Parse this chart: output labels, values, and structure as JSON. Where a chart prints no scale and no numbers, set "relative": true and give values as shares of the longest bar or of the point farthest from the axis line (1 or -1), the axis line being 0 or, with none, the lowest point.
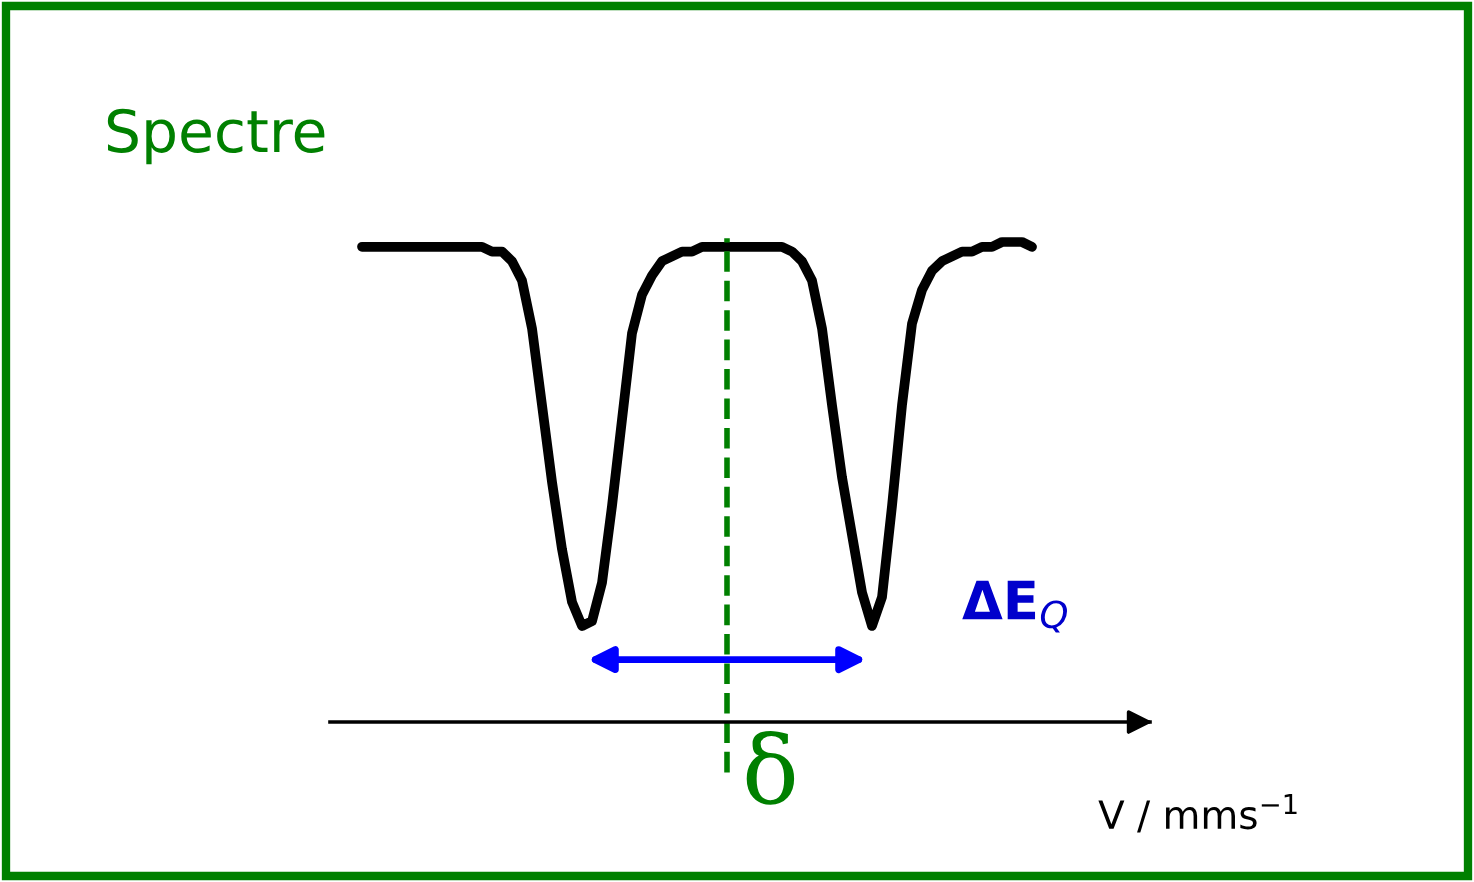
{
  "chart_data": {
    "type": "line",
    "title": "Spectre",
    "xlabel": "V / mms$^{−1}$",
    "relative": true,
    "categories": [
      null,
      null,
      null,
      null,
      null,
      null,
      null,
      null,
      null,
      null,
      null,
      null,
      null,
      null,
      null,
      null,
      null,
      null,
      null,
      null,
      null,
      null,
      null,
      null,
      null,
      null,
      null,
      null,
      null,
      null,
      null,
      null,
      null,
      null,
      null,
      null,
      null,
      null,
      null,
      null,
      null,
      null,
      null,
      null,
      null,
      null,
      null,
      null,
      null,
      null,
      null,
      null,
      null,
      null,
      null,
      null,
      null,
      null,
      null,
      null,
      null,
      null,
      null,
      null,
      null,
      null,
      null,
      null
    ],
    "series": [
      {
        "color": "#000000",
        "values": [
          0.99,
          0.99,
          0.99,
          0.99,
          0.99,
          0.99,
          0.99,
          0.99,
          0.99,
          0.99,
          0.99,
          0.99,
          0.99,
          0.98,
          0.98,
          0.96,
          0.92,
          0.82,
          0.66,
          0.5,
          0.36,
          0.25,
          0.2,
          0.21,
          0.29,
          0.45,
          0.63,
          0.81,
          0.89,
          0.93,
          0.96,
          0.97,
          0.98,
          0.98,
          0.99,
          0.99,
          0.99,
          0.99,
          0.99,
          0.99,
          0.99,
          0.99,
          0.99,
          0.98,
          0.96,
          0.92,
          0.82,
          0.66,
          0.51,
          0.39,
          0.27,
          0.2,
          0.26,
          0.45,
          0.66,
          0.83,
          0.9,
          0.94,
          0.96,
          0.97,
          0.98,
          0.98,
          0.99,
          0.99,
          1.0,
          1.0,
          1.0,
          0.99
        ]
      }
    ],
    "annotations": [
      "ΔE$_{Q}$",
      "δ"
    ],
    "legend": false
  }
}
